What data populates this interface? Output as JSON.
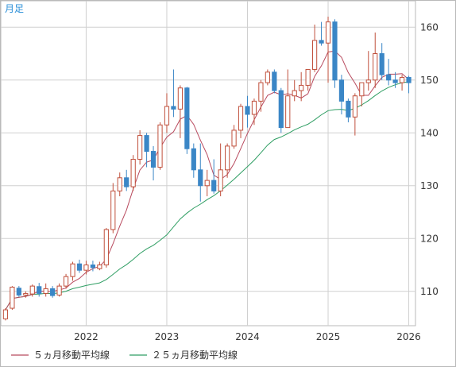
{
  "chart_data": {
    "type": "candlestick",
    "period_label": "月足",
    "y_ticks": [
      110,
      120,
      130,
      140,
      150,
      160
    ],
    "ylim": [
      103.5,
      165
    ],
    "x_ticks": [
      "2022",
      "2023",
      "2024",
      "2025",
      "2026"
    ],
    "x_tick_months": [
      12,
      24,
      36,
      48,
      60
    ],
    "xlim": [
      -0.7,
      61
    ],
    "grid": true,
    "legend_position": "bottom-left",
    "colors": {
      "up": "#c0503c",
      "down": "#3a86c6",
      "ma5": "#b84a5e",
      "ma25": "#2f9e63",
      "grid": "#d0d0d0"
    },
    "series": [
      {
        "name": "５ヵ月移動平均線",
        "type": "line",
        "color": "#b84a5e"
      },
      {
        "name": "２５ヵ月移動平均線",
        "type": "line",
        "color": "#2f9e63"
      }
    ],
    "ohlc": [
      [
        104.8,
        106.5,
        104.5,
        106.8
      ],
      [
        106.8,
        110.8,
        106.5,
        111.0
      ],
      [
        110.6,
        109.3,
        109.0,
        111.0
      ],
      [
        109.3,
        109.6,
        108.8,
        110.0
      ],
      [
        109.5,
        111.0,
        109.0,
        111.3
      ],
      [
        110.9,
        109.6,
        109.0,
        111.6
      ],
      [
        109.6,
        110.5,
        109.0,
        111.5
      ],
      [
        110.5,
        109.2,
        108.8,
        111.0
      ],
      [
        109.3,
        111.0,
        109.0,
        111.5
      ],
      [
        111.0,
        112.8,
        110.5,
        113.3
      ],
      [
        112.8,
        115.2,
        112.0,
        115.6
      ],
      [
        115.2,
        114.0,
        113.5,
        116.0
      ],
      [
        114.0,
        115.0,
        113.2,
        115.8
      ],
      [
        115.0,
        114.5,
        113.8,
        115.8
      ],
      [
        114.3,
        115.0,
        114.0,
        115.6
      ],
      [
        115.0,
        121.7,
        114.5,
        122.0
      ],
      [
        121.7,
        129.0,
        121.0,
        130.5
      ],
      [
        129.0,
        131.5,
        128.0,
        132.5
      ],
      [
        131.5,
        129.8,
        129.0,
        133.0
      ],
      [
        129.8,
        135.0,
        129.0,
        135.8
      ],
      [
        135.0,
        139.5,
        134.0,
        140.5
      ],
      [
        139.5,
        136.5,
        133.5,
        140.0
      ],
      [
        136.5,
        133.5,
        131.0,
        137.5
      ],
      [
        133.5,
        141.5,
        133.0,
        142.0
      ],
      [
        141.5,
        145.0,
        140.0,
        147.5
      ],
      [
        145.0,
        144.5,
        143.0,
        152.0
      ],
      [
        144.5,
        148.5,
        139.0,
        149.0
      ],
      [
        148.5,
        137.0,
        136.0,
        148.7
      ],
      [
        137.0,
        133.0,
        131.5,
        138.0
      ],
      [
        133.0,
        130.0,
        127.0,
        138.0
      ],
      [
        130.0,
        131.0,
        128.0,
        133.0
      ],
      [
        131.0,
        129.0,
        128.5,
        135.0
      ],
      [
        129.0,
        133.0,
        128.0,
        138.0
      ],
      [
        133.0,
        137.5,
        131.5,
        138.0
      ],
      [
        137.5,
        140.5,
        137.0,
        141.5
      ],
      [
        140.5,
        145.0,
        139.0,
        145.5
      ],
      [
        145.0,
        143.5,
        141.0,
        147.0
      ],
      [
        143.5,
        146.0,
        141.5,
        146.5
      ],
      [
        146.0,
        149.5,
        144.0,
        150.0
      ],
      [
        149.5,
        151.5,
        149.0,
        152.0
      ],
      [
        151.5,
        148.0,
        147.5,
        152.0
      ],
      [
        148.0,
        141.0,
        140.0,
        148.5
      ],
      [
        141.0,
        147.0,
        141.0,
        152.0
      ],
      [
        147.0,
        148.0,
        146.0,
        150.0
      ],
      [
        148.0,
        149.0,
        146.0,
        151.5
      ],
      [
        149.0,
        152.0,
        148.0,
        152.0
      ],
      [
        152.0,
        157.5,
        151.5,
        160.5
      ],
      [
        157.5,
        157.0,
        156.5,
        161.0
      ],
      [
        157.0,
        161.0,
        149.5,
        162.0
      ],
      [
        161.0,
        150.0,
        148.5,
        161.5
      ],
      [
        150.0,
        146.0,
        143.5,
        151.0
      ],
      [
        146.0,
        143.0,
        142.0,
        146.5
      ],
      [
        143.0,
        147.0,
        139.5,
        147.5
      ],
      [
        147.0,
        149.5,
        145.0,
        149.5
      ],
      [
        149.5,
        150.0,
        148.0,
        155.5
      ],
      [
        150.0,
        155.0,
        148.5,
        159.0
      ],
      [
        155.0,
        151.0,
        150.0,
        157.0
      ],
      [
        151.0,
        150.0,
        149.0,
        154.0
      ],
      [
        150.0,
        149.5,
        148.5,
        151.5
      ],
      [
        149.5,
        150.5,
        148.0,
        151.0
      ],
      [
        150.5,
        149.5,
        147.5,
        150.8
      ]
    ]
  }
}
